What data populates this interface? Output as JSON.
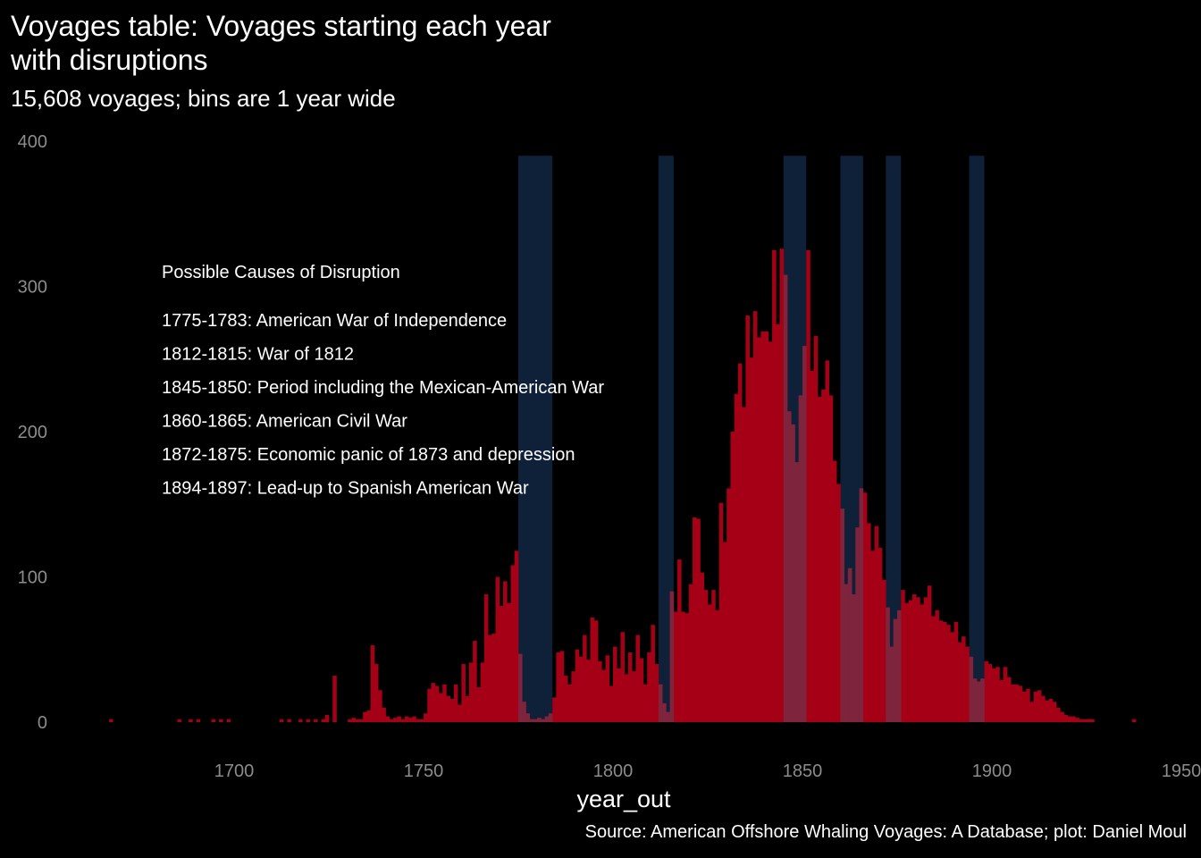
{
  "chart_data": {
    "type": "bar",
    "title": "Voyages table: Voyages starting each year\nwith disruptions",
    "subtitle": "15,608 voyages; bins are 1 year wide",
    "caption": "Source: American Offshore Whaling Voyages: A Database; plot: Daniel Moul",
    "xlabel": "year_out",
    "ylabel": "",
    "xlim": [
      1656,
      1950
    ],
    "ylim": [
      0,
      400
    ],
    "x_ticks": [
      1700,
      1750,
      1800,
      1850,
      1900,
      1950
    ],
    "y_ticks": [
      0,
      100,
      200,
      300,
      400
    ],
    "grid": false,
    "legend": "none",
    "colors": {
      "bars": "#a50016",
      "bands": "#0f2138",
      "band_overlap": "#7a2841",
      "background": "#000000",
      "tick_text": "#8c8c8c"
    },
    "bins": [
      {
        "x": 1667,
        "y": 2
      },
      {
        "x": 1685,
        "y": 2
      },
      {
        "x": 1688,
        "y": 2
      },
      {
        "x": 1690,
        "y": 2
      },
      {
        "x": 1694,
        "y": 2
      },
      {
        "x": 1696,
        "y": 2
      },
      {
        "x": 1698,
        "y": 2
      },
      {
        "x": 1712,
        "y": 2
      },
      {
        "x": 1714,
        "y": 2
      },
      {
        "x": 1717,
        "y": 2
      },
      {
        "x": 1719,
        "y": 2
      },
      {
        "x": 1721,
        "y": 2
      },
      {
        "x": 1723,
        "y": 2
      },
      {
        "x": 1724,
        "y": 5
      },
      {
        "x": 1726,
        "y": 32
      },
      {
        "x": 1730,
        "y": 2
      },
      {
        "x": 1731,
        "y": 3
      },
      {
        "x": 1732,
        "y": 2
      },
      {
        "x": 1733,
        "y": 2
      },
      {
        "x": 1734,
        "y": 7
      },
      {
        "x": 1735,
        "y": 8
      },
      {
        "x": 1736,
        "y": 53
      },
      {
        "x": 1737,
        "y": 40
      },
      {
        "x": 1738,
        "y": 22
      },
      {
        "x": 1739,
        "y": 10
      },
      {
        "x": 1740,
        "y": 4
      },
      {
        "x": 1741,
        "y": 2
      },
      {
        "x": 1742,
        "y": 3
      },
      {
        "x": 1743,
        "y": 4
      },
      {
        "x": 1744,
        "y": 2
      },
      {
        "x": 1745,
        "y": 4
      },
      {
        "x": 1746,
        "y": 3
      },
      {
        "x": 1747,
        "y": 4
      },
      {
        "x": 1748,
        "y": 2
      },
      {
        "x": 1749,
        "y": 2
      },
      {
        "x": 1750,
        "y": 6
      },
      {
        "x": 1751,
        "y": 23
      },
      {
        "x": 1752,
        "y": 27
      },
      {
        "x": 1753,
        "y": 25
      },
      {
        "x": 1754,
        "y": 20
      },
      {
        "x": 1755,
        "y": 26
      },
      {
        "x": 1756,
        "y": 18
      },
      {
        "x": 1757,
        "y": 16
      },
      {
        "x": 1758,
        "y": 26
      },
      {
        "x": 1759,
        "y": 12
      },
      {
        "x": 1760,
        "y": 40
      },
      {
        "x": 1761,
        "y": 18
      },
      {
        "x": 1762,
        "y": 41
      },
      {
        "x": 1763,
        "y": 56
      },
      {
        "x": 1764,
        "y": 24
      },
      {
        "x": 1765,
        "y": 41
      },
      {
        "x": 1766,
        "y": 88
      },
      {
        "x": 1767,
        "y": 60
      },
      {
        "x": 1768,
        "y": 61
      },
      {
        "x": 1769,
        "y": 100
      },
      {
        "x": 1770,
        "y": 80
      },
      {
        "x": 1771,
        "y": 97
      },
      {
        "x": 1772,
        "y": 82
      },
      {
        "x": 1773,
        "y": 108
      },
      {
        "x": 1774,
        "y": 118
      },
      {
        "x": 1775,
        "y": 47
      },
      {
        "x": 1776,
        "y": 14
      },
      {
        "x": 1777,
        "y": 6
      },
      {
        "x": 1778,
        "y": 2
      },
      {
        "x": 1779,
        "y": 2
      },
      {
        "x": 1780,
        "y": 3
      },
      {
        "x": 1781,
        "y": 2
      },
      {
        "x": 1782,
        "y": 4
      },
      {
        "x": 1783,
        "y": 6
      },
      {
        "x": 1784,
        "y": 17
      },
      {
        "x": 1785,
        "y": 48
      },
      {
        "x": 1786,
        "y": 49
      },
      {
        "x": 1787,
        "y": 32
      },
      {
        "x": 1788,
        "y": 26
      },
      {
        "x": 1789,
        "y": 35
      },
      {
        "x": 1790,
        "y": 50
      },
      {
        "x": 1791,
        "y": 45
      },
      {
        "x": 1792,
        "y": 60
      },
      {
        "x": 1793,
        "y": 43
      },
      {
        "x": 1794,
        "y": 72
      },
      {
        "x": 1795,
        "y": 70
      },
      {
        "x": 1796,
        "y": 42
      },
      {
        "x": 1797,
        "y": 36
      },
      {
        "x": 1798,
        "y": 46
      },
      {
        "x": 1799,
        "y": 25
      },
      {
        "x": 1800,
        "y": 52
      },
      {
        "x": 1801,
        "y": 37
      },
      {
        "x": 1802,
        "y": 62
      },
      {
        "x": 1803,
        "y": 33
      },
      {
        "x": 1804,
        "y": 48
      },
      {
        "x": 1805,
        "y": 35
      },
      {
        "x": 1806,
        "y": 60
      },
      {
        "x": 1807,
        "y": 44
      },
      {
        "x": 1808,
        "y": 26
      },
      {
        "x": 1809,
        "y": 48
      },
      {
        "x": 1810,
        "y": 67
      },
      {
        "x": 1811,
        "y": 40
      },
      {
        "x": 1812,
        "y": 26
      },
      {
        "x": 1813,
        "y": 13
      },
      {
        "x": 1814,
        "y": 7
      },
      {
        "x": 1815,
        "y": 90
      },
      {
        "x": 1816,
        "y": 76
      },
      {
        "x": 1817,
        "y": 112
      },
      {
        "x": 1818,
        "y": 76
      },
      {
        "x": 1819,
        "y": 75
      },
      {
        "x": 1820,
        "y": 95
      },
      {
        "x": 1821,
        "y": 141
      },
      {
        "x": 1822,
        "y": 140
      },
      {
        "x": 1823,
        "y": 103
      },
      {
        "x": 1824,
        "y": 91
      },
      {
        "x": 1825,
        "y": 81
      },
      {
        "x": 1826,
        "y": 91
      },
      {
        "x": 1827,
        "y": 77
      },
      {
        "x": 1828,
        "y": 151
      },
      {
        "x": 1829,
        "y": 124
      },
      {
        "x": 1830,
        "y": 161
      },
      {
        "x": 1831,
        "y": 200
      },
      {
        "x": 1832,
        "y": 226
      },
      {
        "x": 1833,
        "y": 247
      },
      {
        "x": 1834,
        "y": 217
      },
      {
        "x": 1835,
        "y": 280
      },
      {
        "x": 1836,
        "y": 251
      },
      {
        "x": 1837,
        "y": 283
      },
      {
        "x": 1838,
        "y": 265
      },
      {
        "x": 1839,
        "y": 269
      },
      {
        "x": 1840,
        "y": 269
      },
      {
        "x": 1841,
        "y": 262
      },
      {
        "x": 1842,
        "y": 325
      },
      {
        "x": 1843,
        "y": 274
      },
      {
        "x": 1844,
        "y": 326
      },
      {
        "x": 1845,
        "y": 308
      },
      {
        "x": 1846,
        "y": 214
      },
      {
        "x": 1847,
        "y": 205
      },
      {
        "x": 1848,
        "y": 179
      },
      {
        "x": 1849,
        "y": 225
      },
      {
        "x": 1850,
        "y": 259
      },
      {
        "x": 1851,
        "y": 325
      },
      {
        "x": 1852,
        "y": 242
      },
      {
        "x": 1853,
        "y": 266
      },
      {
        "x": 1854,
        "y": 224
      },
      {
        "x": 1855,
        "y": 229
      },
      {
        "x": 1856,
        "y": 249
      },
      {
        "x": 1857,
        "y": 225
      },
      {
        "x": 1858,
        "y": 180
      },
      {
        "x": 1859,
        "y": 164
      },
      {
        "x": 1860,
        "y": 147
      },
      {
        "x": 1861,
        "y": 95
      },
      {
        "x": 1862,
        "y": 106
      },
      {
        "x": 1863,
        "y": 88
      },
      {
        "x": 1864,
        "y": 134
      },
      {
        "x": 1865,
        "y": 161
      },
      {
        "x": 1866,
        "y": 158
      },
      {
        "x": 1867,
        "y": 137
      },
      {
        "x": 1868,
        "y": 118
      },
      {
        "x": 1869,
        "y": 135
      },
      {
        "x": 1870,
        "y": 120
      },
      {
        "x": 1871,
        "y": 98
      },
      {
        "x": 1872,
        "y": 79
      },
      {
        "x": 1873,
        "y": 52
      },
      {
        "x": 1874,
        "y": 71
      },
      {
        "x": 1875,
        "y": 77
      },
      {
        "x": 1876,
        "y": 91
      },
      {
        "x": 1877,
        "y": 82
      },
      {
        "x": 1878,
        "y": 84
      },
      {
        "x": 1879,
        "y": 88
      },
      {
        "x": 1880,
        "y": 86
      },
      {
        "x": 1881,
        "y": 81
      },
      {
        "x": 1882,
        "y": 86
      },
      {
        "x": 1883,
        "y": 94
      },
      {
        "x": 1884,
        "y": 73
      },
      {
        "x": 1885,
        "y": 77
      },
      {
        "x": 1886,
        "y": 70
      },
      {
        "x": 1887,
        "y": 69
      },
      {
        "x": 1888,
        "y": 67
      },
      {
        "x": 1889,
        "y": 62
      },
      {
        "x": 1890,
        "y": 69
      },
      {
        "x": 1891,
        "y": 55
      },
      {
        "x": 1892,
        "y": 59
      },
      {
        "x": 1893,
        "y": 52
      },
      {
        "x": 1894,
        "y": 45
      },
      {
        "x": 1895,
        "y": 30
      },
      {
        "x": 1896,
        "y": 28
      },
      {
        "x": 1897,
        "y": 30
      },
      {
        "x": 1898,
        "y": 42
      },
      {
        "x": 1899,
        "y": 40
      },
      {
        "x": 1900,
        "y": 37
      },
      {
        "x": 1901,
        "y": 38
      },
      {
        "x": 1902,
        "y": 29
      },
      {
        "x": 1903,
        "y": 38
      },
      {
        "x": 1904,
        "y": 31
      },
      {
        "x": 1905,
        "y": 26
      },
      {
        "x": 1906,
        "y": 26
      },
      {
        "x": 1907,
        "y": 25
      },
      {
        "x": 1908,
        "y": 21
      },
      {
        "x": 1909,
        "y": 23
      },
      {
        "x": 1910,
        "y": 14
      },
      {
        "x": 1911,
        "y": 21
      },
      {
        "x": 1912,
        "y": 22
      },
      {
        "x": 1913,
        "y": 18
      },
      {
        "x": 1914,
        "y": 15
      },
      {
        "x": 1915,
        "y": 16
      },
      {
        "x": 1916,
        "y": 14
      },
      {
        "x": 1917,
        "y": 10
      },
      {
        "x": 1918,
        "y": 7
      },
      {
        "x": 1919,
        "y": 5
      },
      {
        "x": 1920,
        "y": 4
      },
      {
        "x": 1921,
        "y": 4
      },
      {
        "x": 1922,
        "y": 3
      },
      {
        "x": 1923,
        "y": 2
      },
      {
        "x": 1924,
        "y": 2
      },
      {
        "x": 1925,
        "y": 2
      },
      {
        "x": 1926,
        "y": 2
      },
      {
        "x": 1937,
        "y": 2
      }
    ],
    "disruptions": [
      {
        "start": 1775,
        "end": 1783,
        "label": "1775-1783: American War of Independence"
      },
      {
        "start": 1812,
        "end": 1815,
        "label": "1812-1815: War of 1812"
      },
      {
        "start": 1845,
        "end": 1850,
        "label": "1845-1850: Period including the Mexican-American War"
      },
      {
        "start": 1860,
        "end": 1865,
        "label": "1860-1865: American Civil War"
      },
      {
        "start": 1872,
        "end": 1875,
        "label": "1872-1875: Economic panic of 1873 and depression"
      },
      {
        "start": 1894,
        "end": 1897,
        "label": "1894-1897: Lead-up to Spanish American War"
      }
    ],
    "annotation_title": "Possible Causes of Disruption"
  }
}
